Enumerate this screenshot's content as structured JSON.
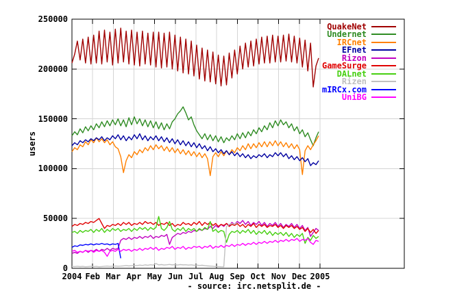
{
  "chart_data": {
    "type": "line",
    "title": "",
    "ylabel": "users",
    "source_caption": "- source: irc.netsplit.de -",
    "x_tick_labels": [
      "2004",
      "Feb",
      "Mar",
      "Apr",
      "May",
      "Jun",
      "Jul",
      "Aug",
      "Sep",
      "Oct",
      "Nov",
      "Dec",
      "2005"
    ],
    "y_ticks": [
      0,
      50000,
      100000,
      150000,
      200000,
      250000
    ],
    "ylim": [
      0,
      250000
    ],
    "x_range_days": [
      0,
      490
    ],
    "grid": true,
    "legend_position": "top-right-inside",
    "sample_step_days": 4,
    "colors": {
      "grid": "#d4d4d4",
      "frame": "#000000",
      "background": "#ffffff"
    },
    "series": [
      {
        "name": "QuakeNet",
        "color": "#a00000",
        "start_day": 0,
        "values": [
          206000,
          215000,
          228000,
          209000,
          230000,
          206000,
          232000,
          205000,
          234000,
          206000,
          238000,
          205000,
          239000,
          207000,
          237000,
          204000,
          240000,
          206000,
          241000,
          207000,
          238000,
          205000,
          239000,
          204000,
          237000,
          203000,
          238000,
          205000,
          236000,
          204000,
          237000,
          202000,
          237000,
          201000,
          236000,
          202000,
          237000,
          200000,
          234000,
          198000,
          232000,
          196000,
          230000,
          195000,
          228000,
          193000,
          224000,
          190000,
          221000,
          188000,
          219000,
          187000,
          217000,
          185000,
          214000,
          183000,
          213000,
          184000,
          216000,
          191000,
          219000,
          195000,
          223000,
          200000,
          226000,
          202000,
          228000,
          203000,
          230000,
          205000,
          232000,
          206000,
          233000,
          206000,
          234000,
          207000,
          233000,
          207000,
          234000,
          208000,
          235000,
          207000,
          233000,
          206000,
          231000,
          202000,
          229000,
          198000,
          226000,
          182000,
          203000,
          211000
        ]
      },
      {
        "name": "Undernet",
        "color": "#2e8b22",
        "start_day": 0,
        "values": [
          133000,
          137000,
          134000,
          140000,
          136000,
          142000,
          138000,
          143000,
          139000,
          145000,
          141000,
          147000,
          142000,
          148000,
          143000,
          149000,
          144000,
          150000,
          143000,
          149000,
          142000,
          151000,
          144000,
          152000,
          145000,
          150000,
          143000,
          149000,
          142000,
          148000,
          141000,
          147000,
          140000,
          146000,
          139000,
          145000,
          140000,
          147000,
          150000,
          155000,
          158000,
          162000,
          156000,
          149000,
          152000,
          144000,
          138000,
          134000,
          130000,
          135000,
          129000,
          134000,
          128000,
          133000,
          127000,
          132000,
          126000,
          131000,
          128000,
          133000,
          129000,
          135000,
          130000,
          136000,
          131000,
          137000,
          133000,
          139000,
          135000,
          141000,
          137000,
          143000,
          139000,
          146000,
          141000,
          148000,
          143000,
          149000,
          144000,
          147000,
          141000,
          145000,
          138000,
          142000,
          135000,
          139000,
          132000,
          136000,
          129000,
          123000,
          131000,
          137000
        ]
      },
      {
        "name": "IRCnet",
        "color": "#ff8000",
        "start_day": 0,
        "values": [
          117000,
          121000,
          119000,
          124000,
          122000,
          127000,
          124000,
          129000,
          126000,
          131000,
          127000,
          130000,
          126000,
          129000,
          124000,
          127000,
          122000,
          120000,
          112000,
          96000,
          108000,
          114000,
          111000,
          117000,
          114000,
          119000,
          116000,
          121000,
          118000,
          123000,
          119000,
          124000,
          120000,
          123000,
          118000,
          122000,
          117000,
          121000,
          116000,
          120000,
          115000,
          119000,
          114000,
          118000,
          113000,
          117000,
          112000,
          116000,
          111000,
          115000,
          110000,
          93000,
          112000,
          116000,
          112000,
          117000,
          113000,
          118000,
          114000,
          119000,
          116000,
          121000,
          118000,
          123000,
          119000,
          125000,
          120000,
          125000,
          121000,
          126000,
          122000,
          127000,
          122000,
          127000,
          123000,
          128000,
          123000,
          127000,
          122000,
          126000,
          121000,
          125000,
          120000,
          124000,
          119000,
          94000,
          118000,
          123000,
          119000,
          124000,
          128000,
          133000
        ]
      },
      {
        "name": "EFnet",
        "color": "#0000a0",
        "start_day": 0,
        "values": [
          123000,
          126000,
          124000,
          128000,
          126000,
          129000,
          127000,
          130000,
          128000,
          131000,
          129000,
          132000,
          128000,
          131000,
          129000,
          133000,
          130000,
          134000,
          129000,
          133000,
          128000,
          132000,
          129000,
          134000,
          130000,
          135000,
          129000,
          133000,
          128000,
          132000,
          129000,
          133000,
          128000,
          132000,
          127000,
          131000,
          126000,
          130000,
          125000,
          129000,
          124000,
          128000,
          123000,
          127000,
          122000,
          126000,
          121000,
          125000,
          120000,
          123000,
          118000,
          122000,
          117000,
          120000,
          116000,
          119000,
          115000,
          118000,
          114000,
          117000,
          113000,
          116000,
          112000,
          115000,
          111000,
          114000,
          110000,
          113000,
          111000,
          114000,
          112000,
          115000,
          111000,
          114000,
          112000,
          116000,
          113000,
          116000,
          112000,
          115000,
          110000,
          113000,
          109000,
          112000,
          108000,
          111000,
          107000,
          110000,
          103000,
          106000,
          104000,
          108000
        ]
      },
      {
        "name": "Rizon",
        "color": "#c000c0",
        "start_day": 0,
        "values": [
          15000,
          16000,
          15000,
          17000,
          16000,
          18000,
          16000,
          18000,
          17000,
          19000,
          17000,
          19000,
          18000,
          20000,
          18000,
          20000,
          19000,
          20000,
          28000,
          30000,
          29000,
          31000,
          29000,
          31000,
          30000,
          32000,
          30000,
          32000,
          31000,
          33000,
          30000,
          32000,
          31000,
          33000,
          32000,
          34000,
          24000,
          31000,
          33000,
          35000,
          34000,
          36000,
          35000,
          37000,
          36000,
          38000,
          37000,
          39000,
          38000,
          40000,
          39000,
          42000,
          40000,
          43000,
          41000,
          44000,
          42000,
          45000,
          43000,
          46000,
          44000,
          47000,
          45000,
          48000,
          44000,
          47000,
          43000,
          46000,
          44000,
          47000,
          43000,
          46000,
          42000,
          45000,
          43000,
          46000,
          42000,
          45000,
          41000,
          44000,
          42000,
          45000,
          41000,
          44000,
          40000,
          43000,
          38000,
          41000,
          32000,
          36000,
          40000,
          38000
        ]
      },
      {
        "name": "GameSurge",
        "color": "#e00000",
        "start_day": 0,
        "values": [
          42000,
          44000,
          43000,
          45000,
          44000,
          46000,
          45000,
          47000,
          46000,
          48000,
          50000,
          45000,
          40000,
          43000,
          42000,
          44000,
          43000,
          45000,
          43000,
          46000,
          44000,
          46000,
          43000,
          45000,
          44000,
          46000,
          44000,
          47000,
          45000,
          46000,
          44000,
          46000,
          43000,
          45000,
          44000,
          46000,
          43000,
          45000,
          42000,
          44000,
          43000,
          46000,
          44000,
          45000,
          43000,
          46000,
          44000,
          47000,
          43000,
          46000,
          44000,
          46000,
          43000,
          45000,
          42000,
          44000,
          43000,
          45000,
          42000,
          44000,
          43000,
          45000,
          42000,
          44000,
          41000,
          44000,
          42000,
          45000,
          41000,
          44000,
          42000,
          44000,
          41000,
          43000,
          42000,
          44000,
          41000,
          43000,
          40000,
          43000,
          41000,
          43000,
          40000,
          42000,
          39000,
          41000,
          37000,
          40000,
          36000,
          39000,
          35000,
          38000
        ]
      },
      {
        "name": "DALnet",
        "color": "#46cf10",
        "start_day": 0,
        "values": [
          36000,
          37000,
          35000,
          38000,
          36000,
          38000,
          37000,
          39000,
          36000,
          39000,
          37000,
          40000,
          36000,
          39000,
          37000,
          40000,
          38000,
          40000,
          37000,
          39000,
          38000,
          40000,
          37000,
          40000,
          38000,
          41000,
          39000,
          41000,
          38000,
          41000,
          39000,
          41000,
          52000,
          40000,
          38000,
          41000,
          47000,
          39000,
          37000,
          40000,
          38000,
          41000,
          37000,
          40000,
          38000,
          40000,
          37000,
          40000,
          38000,
          41000,
          39000,
          47000,
          37000,
          39000,
          36000,
          38000,
          37000,
          26000,
          34000,
          37000,
          36000,
          38000,
          35000,
          38000,
          36000,
          39000,
          35000,
          38000,
          34000,
          37000,
          35000,
          38000,
          34000,
          37000,
          33000,
          36000,
          34000,
          36000,
          33000,
          36000,
          32000,
          35000,
          31000,
          34000,
          32000,
          35000,
          25000,
          31000,
          28000,
          33000,
          30000,
          32000
        ]
      },
      {
        "name": "Rizen",
        "color": "#c0c0c0",
        "start_day": 0,
        "values": [
          2000,
          1800,
          2000,
          1700,
          1900,
          1600,
          1800,
          2000,
          1700,
          1900,
          1600,
          1800,
          2000,
          2200,
          1900,
          2100,
          2300,
          2000,
          2200,
          2500,
          2700,
          2400,
          2600,
          3000,
          2700,
          3200,
          2900,
          3400,
          3000,
          3600,
          3200,
          4800,
          3400,
          3800,
          3300,
          3600,
          3900,
          3400,
          3700,
          3300,
          3800,
          3400,
          3600,
          3200,
          3500,
          3000,
          3300,
          2800,
          3100,
          2600,
          2400,
          2200,
          2000,
          1800,
          1700,
          1600,
          1500,
          42000,
          44000,
          45000,
          44000,
          46000
        ]
      },
      {
        "name": "mIRCx.com",
        "color": "#0000ff",
        "start_day": 0,
        "values": [
          21000,
          22500,
          22000,
          23500,
          23000,
          24000,
          23500,
          24500,
          23500,
          24500,
          24000,
          25000,
          24000,
          24500,
          23500,
          24500,
          24000,
          25000,
          10000
        ]
      },
      {
        "name": "UniBG",
        "color": "#ff00ff",
        "start_day": 0,
        "values": [
          17000,
          18000,
          16000,
          17000,
          16000,
          18000,
          17000,
          18000,
          16000,
          18000,
          17000,
          18000,
          16000,
          12000,
          17000,
          18000,
          17000,
          19000,
          17000,
          19000,
          18000,
          19000,
          17000,
          19000,
          18000,
          20000,
          18000,
          20000,
          19000,
          21000,
          19000,
          21000,
          18000,
          20000,
          19000,
          21000,
          20000,
          22000,
          19000,
          21000,
          20000,
          22000,
          19000,
          21000,
          20000,
          22000,
          21000,
          22000,
          20000,
          22000,
          21000,
          23000,
          20000,
          22000,
          21000,
          23000,
          21000,
          23000,
          22000,
          24000,
          22000,
          24000,
          23000,
          25000,
          23000,
          25000,
          24000,
          26000,
          24000,
          26000,
          25000,
          27000,
          25000,
          27000,
          26000,
          28000,
          26000,
          28000,
          27000,
          29000,
          27000,
          29000,
          28000,
          30000,
          27000,
          29000,
          28000,
          30000,
          26000,
          24000,
          28000,
          27000
        ]
      }
    ]
  }
}
